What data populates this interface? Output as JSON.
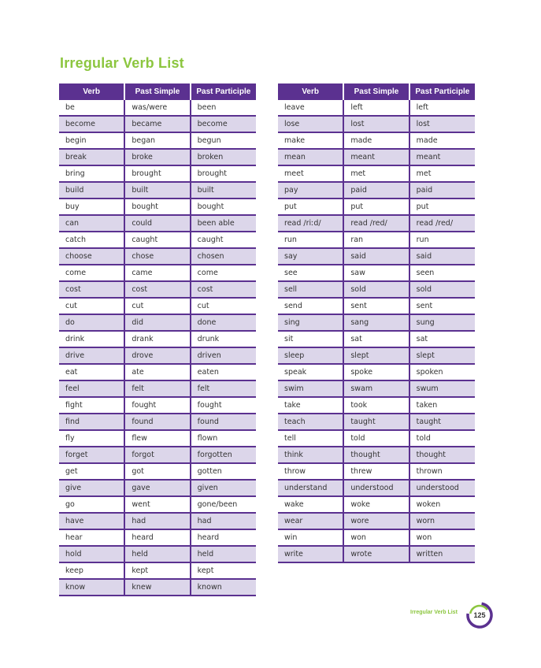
{
  "title": "Irregular Verb List",
  "headers": [
    "Verb",
    "Past Simple",
    "Past Participle"
  ],
  "left_rows": [
    [
      "be",
      "was/were",
      "been"
    ],
    [
      "become",
      "became",
      "become"
    ],
    [
      "begin",
      "began",
      "begun"
    ],
    [
      "break",
      "broke",
      "broken"
    ],
    [
      "bring",
      "brought",
      "brought"
    ],
    [
      "build",
      "built",
      "built"
    ],
    [
      "buy",
      "bought",
      "bought"
    ],
    [
      "can",
      "could",
      "been able"
    ],
    [
      "catch",
      "caught",
      "caught"
    ],
    [
      "choose",
      "chose",
      "chosen"
    ],
    [
      "come",
      "came",
      "come"
    ],
    [
      "cost",
      "cost",
      "cost"
    ],
    [
      "cut",
      "cut",
      "cut"
    ],
    [
      "do",
      "did",
      "done"
    ],
    [
      "drink",
      "drank",
      "drunk"
    ],
    [
      "drive",
      "drove",
      "driven"
    ],
    [
      "eat",
      "ate",
      "eaten"
    ],
    [
      "feel",
      "felt",
      "felt"
    ],
    [
      "fight",
      "fought",
      "fought"
    ],
    [
      "find",
      "found",
      "found"
    ],
    [
      "fly",
      "flew",
      "flown"
    ],
    [
      "forget",
      "forgot",
      "forgotten"
    ],
    [
      "get",
      "got",
      "gotten"
    ],
    [
      "give",
      "gave",
      "given"
    ],
    [
      "go",
      "went",
      "gone/been"
    ],
    [
      "have",
      "had",
      "had"
    ],
    [
      "hear",
      "heard",
      "heard"
    ],
    [
      "hold",
      "held",
      "held"
    ],
    [
      "keep",
      "kept",
      "kept"
    ],
    [
      "know",
      "knew",
      "known"
    ]
  ],
  "right_rows": [
    [
      "leave",
      "left",
      "left"
    ],
    [
      "lose",
      "lost",
      "lost"
    ],
    [
      "make",
      "made",
      "made"
    ],
    [
      "mean",
      "meant",
      "meant"
    ],
    [
      "meet",
      "met",
      "met"
    ],
    [
      "pay",
      "paid",
      "paid"
    ],
    [
      "put",
      "put",
      "put"
    ],
    [
      "read /riːd/",
      "read /red/",
      "read /red/"
    ],
    [
      "run",
      "ran",
      "run"
    ],
    [
      "say",
      "said",
      "said"
    ],
    [
      "see",
      "saw",
      "seen"
    ],
    [
      "sell",
      "sold",
      "sold"
    ],
    [
      "send",
      "sent",
      "sent"
    ],
    [
      "sing",
      "sang",
      "sung"
    ],
    [
      "sit",
      "sat",
      "sat"
    ],
    [
      "sleep",
      "slept",
      "slept"
    ],
    [
      "speak",
      "spoke",
      "spoken"
    ],
    [
      "swim",
      "swam",
      "swum"
    ],
    [
      "take",
      "took",
      "taken"
    ],
    [
      "teach",
      "taught",
      "taught"
    ],
    [
      "tell",
      "told",
      "told"
    ],
    [
      "think",
      "thought",
      "thought"
    ],
    [
      "throw",
      "threw",
      "thrown"
    ],
    [
      "understand",
      "understood",
      "understood"
    ],
    [
      "wake",
      "woke",
      "woken"
    ],
    [
      "wear",
      "wore",
      "worn"
    ],
    [
      "win",
      "won",
      "won"
    ],
    [
      "write",
      "wrote",
      "written"
    ]
  ],
  "footer": {
    "label": "Irregular Verb List",
    "page_number": "125"
  },
  "colors": {
    "accent_green": "#8cc63f",
    "header_purple": "#5b3190",
    "row_alt": "#dcd6ea"
  }
}
